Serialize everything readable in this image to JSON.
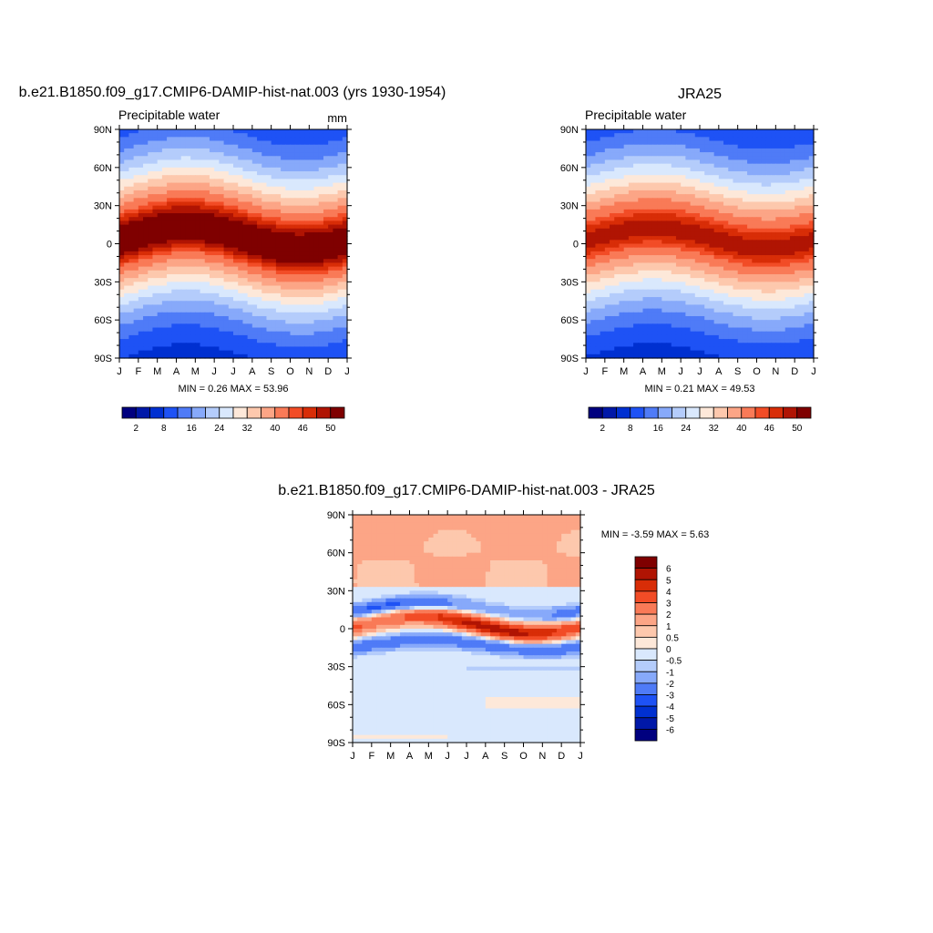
{
  "chart_data": [
    {
      "type": "heatmap",
      "title": "b.e21.B1850.f09_g17.CMIP6-DAMIP-hist-nat.003 (yrs 1930-1954)",
      "subtitle_left": "Precipitable water",
      "subtitle_right": "mm",
      "x_tick_labels": [
        "J",
        "F",
        "M",
        "A",
        "M",
        "J",
        "J",
        "A",
        "S",
        "O",
        "N",
        "D",
        "J"
      ],
      "y_tick_labels": [
        "90N",
        "60N",
        "30N",
        "0",
        "30S",
        "60S",
        "90S"
      ],
      "y_ticks_deg": [
        90,
        60,
        30,
        0,
        -30,
        -60,
        -90
      ],
      "ylim": [
        -90,
        90
      ],
      "stats_text": "MIN =   0.26 MAX =  53.96",
      "min": 0.26,
      "max": 53.96,
      "field": {
        "peak": 54,
        "amp": 9,
        "phase": 0.55,
        "a_north": 60,
        "a_south": 55,
        "b_north": 1.6,
        "b_south": 1.5,
        "floor": 2
      },
      "colorbar": {
        "orientation": "horizontal",
        "labels": [
          "2",
          "8",
          "16",
          "24",
          "32",
          "40",
          "46",
          "50"
        ],
        "label_boundaries": [
          1,
          3,
          5,
          7,
          9,
          11,
          13,
          15
        ],
        "levels": [
          2,
          4,
          8,
          12,
          16,
          20,
          24,
          28,
          32,
          36,
          40,
          44,
          46,
          48,
          50
        ],
        "colors": [
          "#00007f",
          "#0018a8",
          "#0030d1",
          "#1e52f5",
          "#4f7bf7",
          "#87a9fa",
          "#b4ccfb",
          "#d9e8fd",
          "#fde8d9",
          "#fdc8ad",
          "#fca586",
          "#f97a57",
          "#f24c26",
          "#d82d07",
          "#b01403",
          "#7f0000"
        ]
      }
    },
    {
      "type": "heatmap",
      "title": "JRA25",
      "subtitle_left": "Precipitable water",
      "x_tick_labels": [
        "J",
        "F",
        "M",
        "A",
        "M",
        "J",
        "J",
        "A",
        "S",
        "O",
        "N",
        "D",
        "J"
      ],
      "y_tick_labels": [
        "90N",
        "60N",
        "30N",
        "0",
        "30S",
        "60S",
        "90S"
      ],
      "y_ticks_deg": [
        90,
        60,
        30,
        0,
        -30,
        -60,
        -90
      ],
      "ylim": [
        -90,
        90
      ],
      "stats_text": "MIN =   0.21 MAX =  49.53",
      "min": 0.21,
      "max": 49.53,
      "field": {
        "peak": 49.5,
        "amp": 8,
        "phase": 0.55,
        "a_north": 60,
        "a_south": 57,
        "b_north": 1.6,
        "b_south": 1.5,
        "floor": 1.5
      },
      "colorbar": {
        "orientation": "horizontal",
        "labels": [
          "2",
          "8",
          "16",
          "24",
          "32",
          "40",
          "46",
          "50"
        ],
        "label_boundaries": [
          1,
          3,
          5,
          7,
          9,
          11,
          13,
          15
        ],
        "levels": [
          2,
          4,
          8,
          12,
          16,
          20,
          24,
          28,
          32,
          36,
          40,
          44,
          46,
          48,
          50
        ],
        "colors": [
          "#00007f",
          "#0018a8",
          "#0030d1",
          "#1e52f5",
          "#4f7bf7",
          "#87a9fa",
          "#b4ccfb",
          "#d9e8fd",
          "#fde8d9",
          "#fdc8ad",
          "#fca586",
          "#f97a57",
          "#f24c26",
          "#d82d07",
          "#b01403",
          "#7f0000"
        ]
      }
    },
    {
      "type": "heatmap",
      "title": "b.e21.B1850.f09_g17.CMIP6-DAMIP-hist-nat.003 - JRA25",
      "x_tick_labels": [
        "J",
        "F",
        "M",
        "A",
        "M",
        "J",
        "J",
        "A",
        "S",
        "O",
        "N",
        "D",
        "J"
      ],
      "y_tick_labels": [
        "90N",
        "60N",
        "30N",
        "0",
        "30S",
        "60S",
        "90S"
      ],
      "y_ticks_deg": [
        90,
        60,
        30,
        0,
        -30,
        -60,
        -90
      ],
      "ylim": [
        -90,
        90
      ],
      "stats_text": "MIN =  -3.59 MAX =   5.63",
      "min": -3.59,
      "max": 5.63,
      "colorbar": {
        "orientation": "vertical",
        "labels": [
          "6",
          "5",
          "4",
          "3",
          "2",
          "1",
          "0.5",
          "0",
          "-0.5",
          "-1",
          "-2",
          "-3",
          "-4",
          "-5",
          "-6"
        ],
        "levels": [
          -6,
          -5,
          -4,
          -3,
          -2,
          -1,
          -0.5,
          0,
          0.5,
          1,
          2,
          3,
          4,
          5,
          6
        ],
        "colors": [
          "#00007f",
          "#0018a8",
          "#0030d1",
          "#1e52f5",
          "#4f7bf7",
          "#87a9fa",
          "#b4ccfb",
          "#d9e8fd",
          "#fde8d9",
          "#fdc8ad",
          "#fca586",
          "#f97a57",
          "#f24c26",
          "#d82d07",
          "#b01403",
          "#7f0000"
        ]
      }
    }
  ]
}
